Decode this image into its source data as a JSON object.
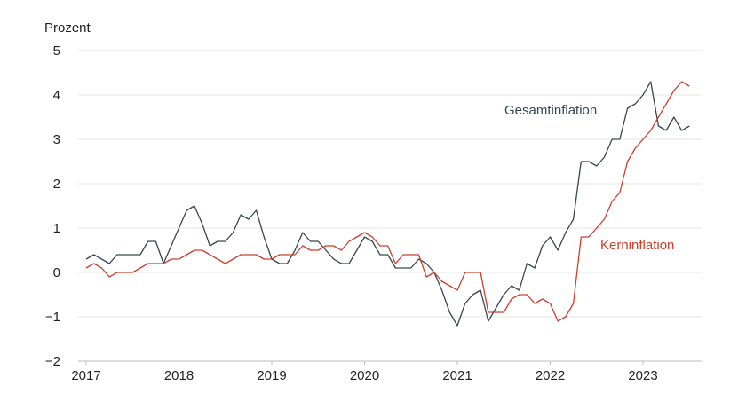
{
  "chart_data": {
    "type": "line",
    "ylabel": "Prozent",
    "ylim": [
      -2,
      5
    ],
    "yticks": [
      -2,
      -1,
      0,
      1,
      2,
      3,
      4,
      5
    ],
    "xlim": [
      "2017-01",
      "2023-07"
    ],
    "xticks": [
      "2017",
      "2018",
      "2019",
      "2020",
      "2021",
      "2022",
      "2023"
    ],
    "grid": "horizontal",
    "legend": "inline labels",
    "series": [
      {
        "name": "Gesamtinflation",
        "color": "#37474f",
        "start": "2017-01",
        "values": [
          0.3,
          0.4,
          0.3,
          0.2,
          0.4,
          0.4,
          0.4,
          0.4,
          0.7,
          0.7,
          0.2,
          0.6,
          1.0,
          1.4,
          1.5,
          1.1,
          0.6,
          0.7,
          0.7,
          0.9,
          1.3,
          1.2,
          1.4,
          0.8,
          0.3,
          0.2,
          0.2,
          0.5,
          0.9,
          0.7,
          0.7,
          0.5,
          0.3,
          0.2,
          0.2,
          0.5,
          0.8,
          0.7,
          0.4,
          0.4,
          0.1,
          0.1,
          0.1,
          0.3,
          0.2,
          0.0,
          -0.4,
          -0.9,
          -1.2,
          -0.7,
          -0.5,
          -0.4,
          -1.1,
          -0.8,
          -0.5,
          -0.3,
          -0.4,
          0.2,
          0.1,
          0.6,
          0.8,
          0.5,
          0.9,
          1.2,
          2.5,
          2.5,
          2.4,
          2.6,
          3.0,
          3.0,
          3.7,
          3.8,
          4.0,
          4.3,
          3.3,
          3.2,
          3.5,
          3.2,
          3.3
        ]
      },
      {
        "name": "Kerninflation",
        "color": "#c9412b",
        "start": "2017-01",
        "values": [
          0.1,
          0.2,
          0.1,
          -0.1,
          0.0,
          0.0,
          0.0,
          0.1,
          0.2,
          0.2,
          0.2,
          0.3,
          0.3,
          0.4,
          0.5,
          0.5,
          0.4,
          0.3,
          0.2,
          0.3,
          0.4,
          0.4,
          0.4,
          0.3,
          0.3,
          0.4,
          0.4,
          0.4,
          0.6,
          0.5,
          0.5,
          0.6,
          0.6,
          0.5,
          0.7,
          0.8,
          0.9,
          0.8,
          0.6,
          0.6,
          0.2,
          0.4,
          0.4,
          0.4,
          -0.1,
          0.0,
          -0.2,
          -0.3,
          -0.4,
          0.0,
          0.0,
          0.0,
          -0.9,
          -0.9,
          -0.9,
          -0.6,
          -0.5,
          -0.5,
          -0.7,
          -0.6,
          -0.7,
          -1.1,
          -1.0,
          -0.7,
          0.8,
          0.8,
          1.0,
          1.2,
          1.6,
          1.8,
          2.5,
          2.8,
          3.0,
          3.2,
          3.5,
          3.8,
          4.1,
          4.3,
          4.2
        ]
      }
    ]
  }
}
